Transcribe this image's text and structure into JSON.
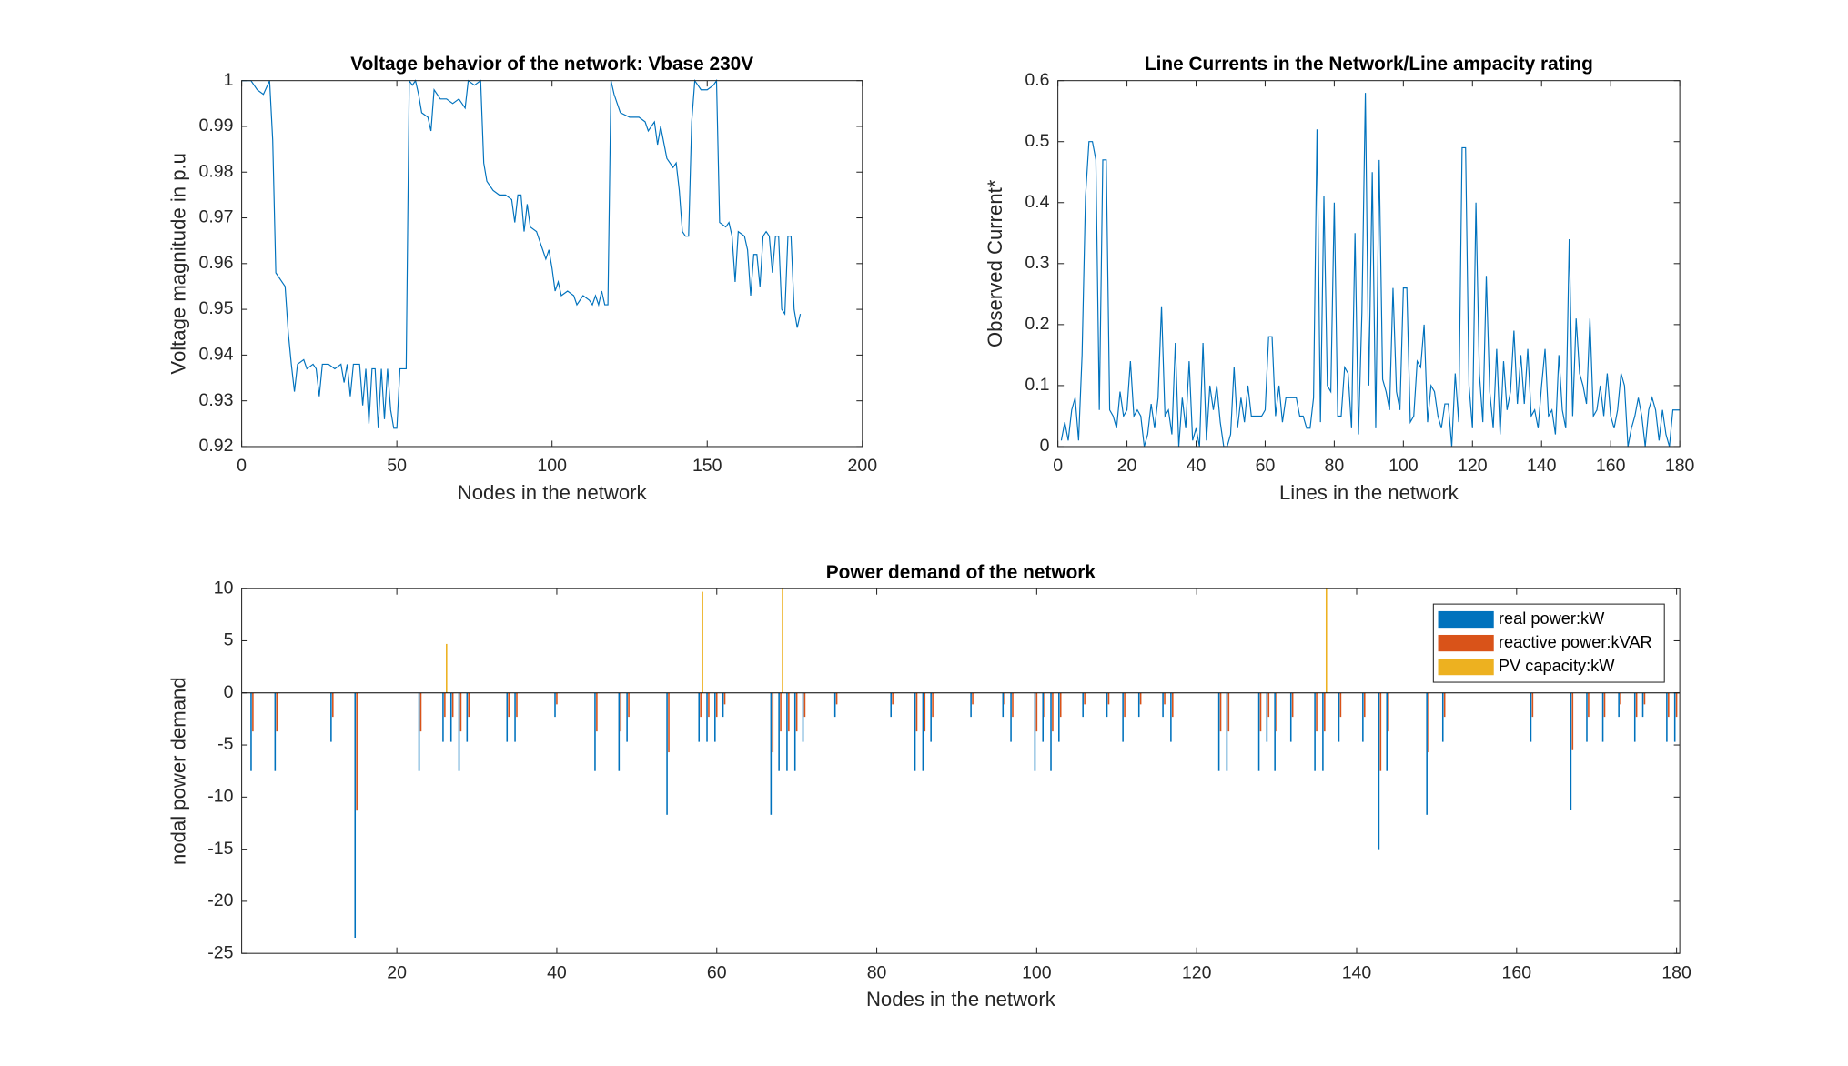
{
  "chart_data": [
    {
      "type": "line",
      "title": "Voltage behavior of the network: Vbase 230V",
      "xlabel": "Nodes in the network",
      "ylabel": "Voltage magnitude in p.u",
      "color": "#0072bd",
      "x": [
        0,
        3,
        5,
        7,
        9,
        10,
        11,
        13,
        14,
        15,
        16,
        17,
        18,
        20,
        21,
        23,
        24,
        25,
        26,
        28,
        30,
        32,
        33,
        34,
        35,
        36,
        38,
        39,
        40,
        41,
        42,
        43,
        44,
        45,
        46,
        47,
        48,
        49,
        50,
        51,
        53,
        54,
        55,
        56,
        57,
        58,
        60,
        61,
        62,
        64,
        66,
        68,
        70,
        72,
        73,
        75,
        77,
        78,
        79,
        81,
        83,
        85,
        87,
        88,
        89,
        90,
        91,
        92,
        93,
        95,
        96,
        97,
        98,
        99,
        100,
        101,
        102,
        103,
        105,
        107,
        108,
        110,
        112,
        113,
        114,
        115,
        116,
        117,
        118,
        119,
        120,
        122,
        125,
        128,
        130,
        131,
        133,
        134,
        135,
        137,
        139,
        140,
        141,
        142,
        143,
        144,
        145,
        146,
        147,
        148,
        150,
        152,
        153,
        154,
        156,
        157,
        158,
        159,
        160,
        162,
        163,
        164,
        165,
        166,
        167,
        168,
        169,
        170,
        171,
        172,
        173,
        174,
        175,
        176,
        177,
        178,
        179,
        180
      ],
      "values": [
        1,
        1,
        0.998,
        0.997,
        1,
        0.987,
        0.958,
        0.956,
        0.955,
        0.945,
        0.938,
        0.932,
        0.938,
        0.939,
        0.937,
        0.938,
        0.937,
        0.931,
        0.938,
        0.938,
        0.937,
        0.938,
        0.934,
        0.938,
        0.931,
        0.938,
        0.938,
        0.929,
        0.937,
        0.925,
        0.937,
        0.937,
        0.924,
        0.937,
        0.926,
        0.937,
        0.928,
        0.924,
        0.924,
        0.937,
        0.937,
        1,
        0.999,
        1,
        0.997,
        0.993,
        0.992,
        0.989,
        0.998,
        0.996,
        0.996,
        0.995,
        0.996,
        0.994,
        1,
        0.999,
        1,
        0.982,
        0.978,
        0.976,
        0.975,
        0.975,
        0.974,
        0.969,
        0.975,
        0.975,
        0.967,
        0.973,
        0.968,
        0.967,
        0.965,
        0.963,
        0.961,
        0.963,
        0.959,
        0.954,
        0.956,
        0.953,
        0.954,
        0.953,
        0.951,
        0.953,
        0.952,
        0.951,
        0.953,
        0.951,
        0.954,
        0.951,
        0.951,
        1,
        0.997,
        0.993,
        0.992,
        0.992,
        0.991,
        0.989,
        0.991,
        0.986,
        0.99,
        0.983,
        0.981,
        0.982,
        0.976,
        0.967,
        0.966,
        0.966,
        0.991,
        1,
        0.999,
        0.998,
        0.998,
        0.999,
        1,
        0.969,
        0.968,
        0.969,
        0.966,
        0.956,
        0.967,
        0.966,
        0.963,
        0.953,
        0.962,
        0.962,
        0.955,
        0.966,
        0.967,
        0.966,
        0.958,
        0.966,
        0.966,
        0.95,
        0.949,
        0.966,
        0.966,
        0.95,
        0.946,
        0.949
      ],
      "xlim": [
        0,
        200
      ],
      "xticks": [
        0,
        50,
        100,
        150,
        200
      ],
      "ylim": [
        0.92,
        1
      ],
      "yticks": [
        0.92,
        0.93,
        0.94,
        0.95,
        0.96,
        0.97,
        0.98,
        0.99,
        1
      ]
    },
    {
      "type": "line",
      "title": "Line Currents in the Network/Line ampacity rating",
      "xlabel": "Lines in the network",
      "ylabel": "Observed Current*",
      "color": "#0072bd",
      "x": [
        1,
        2,
        3,
        4,
        5,
        6,
        7,
        8,
        9,
        10,
        11,
        12,
        13,
        14,
        15,
        16,
        17,
        18,
        19,
        20,
        21,
        22,
        23,
        24,
        25,
        26,
        27,
        28,
        29,
        30,
        31,
        32,
        33,
        34,
        35,
        36,
        37,
        38,
        39,
        40,
        41,
        42,
        43,
        44,
        45,
        46,
        47,
        48,
        49,
        50,
        51,
        52,
        53,
        54,
        55,
        56,
        57,
        58,
        59,
        60,
        61,
        62,
        63,
        64,
        65,
        66,
        67,
        68,
        69,
        70,
        71,
        72,
        73,
        74,
        75,
        76,
        77,
        78,
        79,
        80,
        81,
        82,
        83,
        84,
        85,
        86,
        87,
        88,
        89,
        90,
        91,
        92,
        93,
        94,
        95,
        96,
        97,
        98,
        99,
        100,
        101,
        102,
        103,
        104,
        105,
        106,
        107,
        108,
        109,
        110,
        111,
        112,
        113,
        114,
        115,
        116,
        117,
        118,
        119,
        120,
        121,
        122,
        123,
        124,
        125,
        126,
        127,
        128,
        129,
        130,
        131,
        132,
        133,
        134,
        135,
        136,
        137,
        138,
        139,
        140,
        141,
        142,
        143,
        144,
        145,
        146,
        147,
        148,
        149,
        150,
        151,
        152,
        153,
        154,
        155,
        156,
        157,
        158,
        159,
        160,
        161,
        162,
        163,
        164,
        165,
        166,
        167,
        168,
        169,
        170,
        171,
        172,
        173,
        174,
        175,
        176,
        177,
        178,
        179,
        180
      ],
      "values": [
        0.01,
        0.04,
        0.01,
        0.06,
        0.08,
        0.01,
        0.15,
        0.41,
        0.5,
        0.5,
        0.47,
        0.06,
        0.47,
        0.47,
        0.06,
        0.05,
        0.03,
        0.09,
        0.05,
        0.06,
        0.14,
        0.05,
        0.06,
        0.05,
        0,
        0.02,
        0.07,
        0.03,
        0.08,
        0.23,
        0.05,
        0.06,
        0.02,
        0.17,
        0,
        0.08,
        0.03,
        0.14,
        0.01,
        0.03,
        0,
        0.17,
        0.01,
        0.1,
        0.06,
        0.1,
        0.04,
        0,
        0,
        0.02,
        0.13,
        0.03,
        0.08,
        0.04,
        0.1,
        0.05,
        0.05,
        0.05,
        0.05,
        0.06,
        0.18,
        0.18,
        0.05,
        0.1,
        0.04,
        0.08,
        0.08,
        0.08,
        0.08,
        0.05,
        0.05,
        0.03,
        0.03,
        0.08,
        0.52,
        0.04,
        0.41,
        0.1,
        0.09,
        0.4,
        0.05,
        0.05,
        0.13,
        0.12,
        0.03,
        0.35,
        0.02,
        0.22,
        0.58,
        0.1,
        0.45,
        0.03,
        0.47,
        0.11,
        0.09,
        0.06,
        0.26,
        0.09,
        0.06,
        0.26,
        0.26,
        0.04,
        0.05,
        0.14,
        0.13,
        0.2,
        0.04,
        0.1,
        0.09,
        0.05,
        0.03,
        0.07,
        0.07,
        0,
        0.12,
        0.04,
        0.49,
        0.49,
        0.1,
        0.03,
        0.4,
        0.12,
        0.04,
        0.28,
        0.09,
        0.03,
        0.16,
        0.02,
        0.14,
        0.06,
        0.09,
        0.19,
        0.07,
        0.15,
        0.07,
        0.16,
        0.05,
        0.06,
        0.03,
        0.1,
        0.16,
        0.05,
        0.06,
        0.02,
        0.15,
        0.06,
        0.03,
        0.34,
        0.05,
        0.21,
        0.12,
        0.1,
        0.07,
        0.21,
        0.05,
        0.06,
        0.1,
        0.05,
        0.12,
        0.05,
        0.03,
        0.06,
        0.12,
        0.1,
        0,
        0.03,
        0.05,
        0.08,
        0.05,
        0,
        0.06,
        0.08,
        0.06,
        0.01,
        0.06,
        0.02,
        0,
        0.06,
        0.06,
        0.06
      ],
      "xlim": [
        0,
        180
      ],
      "xticks": [
        0,
        20,
        40,
        60,
        80,
        100,
        120,
        140,
        160,
        180
      ],
      "ylim": [
        0,
        0.6
      ],
      "yticks": [
        0,
        0.1,
        0.2,
        0.3,
        0.4,
        0.5,
        0.6
      ]
    },
    {
      "type": "bar",
      "title": "Power demand of the network",
      "xlabel": "Nodes in the network",
      "ylabel": "nodal power demand",
      "legend": "northeast",
      "x": [
        2,
        5,
        12,
        15,
        23,
        26,
        27,
        28,
        29,
        34,
        35,
        40,
        45,
        48,
        49,
        54,
        58,
        59,
        60,
        61,
        67,
        68,
        69,
        70,
        71,
        75,
        82,
        85,
        86,
        87,
        92,
        96,
        97,
        100,
        101,
        102,
        103,
        106,
        109,
        111,
        113,
        116,
        117,
        123,
        124,
        128,
        129,
        130,
        132,
        135,
        136,
        138,
        141,
        143,
        144,
        149,
        151,
        162,
        167,
        169,
        171,
        173,
        175,
        176,
        179,
        180
      ],
      "series": [
        {
          "name": "real power:kW",
          "color": "#0072bd",
          "values": [
            -7.5,
            -7.5,
            -4.7,
            -23.5,
            -7.5,
            -4.7,
            -4.7,
            -7.5,
            -4.7,
            -4.7,
            -4.7,
            -2.3,
            -7.5,
            -7.5,
            -4.7,
            -11.7,
            -4.7,
            -4.7,
            -4.7,
            -2.3,
            -11.7,
            -7.5,
            -7.5,
            -7.5,
            -4.7,
            -2.3,
            -2.3,
            -7.5,
            -7.5,
            -4.7,
            -2.3,
            -2.3,
            -4.7,
            -7.5,
            -4.7,
            -7.5,
            -4.7,
            -2.3,
            -2.3,
            -4.7,
            -2.3,
            -2.3,
            -4.7,
            -7.5,
            -7.5,
            -7.5,
            -4.7,
            -7.5,
            -4.7,
            -7.5,
            -7.5,
            -4.7,
            -4.7,
            -15,
            -7.5,
            -11.7,
            -4.7,
            -4.7,
            -11.2,
            -4.7,
            -4.7,
            -2.3,
            -4.7,
            -2.3,
            -4.7,
            -4.7
          ]
        },
        {
          "name": "reactive power:kVAR",
          "color": "#d95319",
          "values": [
            -3.7,
            -3.7,
            -2.3,
            -11.3,
            -3.7,
            -2.3,
            -2.3,
            -3.7,
            -2.3,
            -2.3,
            -2.3,
            -1.1,
            -3.7,
            -3.7,
            -2.3,
            -5.7,
            -2.3,
            -2.3,
            -2.3,
            -1.1,
            -5.7,
            -3.7,
            -3.7,
            -3.7,
            -2.3,
            -1.1,
            -1.1,
            -3.7,
            -3.7,
            -2.3,
            -1.1,
            -1.1,
            -2.3,
            -3.7,
            -2.3,
            -3.7,
            -2.3,
            -1.1,
            -1.1,
            -2.3,
            -1.1,
            -1.1,
            -2.3,
            -3.7,
            -3.7,
            -3.7,
            -2.3,
            -3.7,
            -2.3,
            -3.7,
            -3.7,
            -2.3,
            -2.3,
            -7.5,
            -3.7,
            -5.7,
            -2.3,
            -2.3,
            -5.5,
            -2.3,
            -2.3,
            -1.1,
            -2.3,
            -1.1,
            -2.3,
            -2.3
          ]
        },
        {
          "name": "PV capacity:kW",
          "color": "#edb120",
          "values": [
            0,
            0,
            0,
            0,
            0,
            4.7,
            0,
            0,
            0,
            0,
            0,
            0,
            0,
            0,
            0,
            0,
            9.7,
            0,
            0,
            0,
            0,
            10,
            0,
            0,
            0,
            0,
            0,
            0,
            0,
            0,
            0,
            0,
            0,
            0,
            0,
            0,
            0,
            0,
            0,
            0,
            0,
            0,
            0,
            0,
            0,
            0,
            0,
            0,
            0,
            0,
            10,
            0,
            0,
            0,
            0,
            0,
            0,
            0,
            0,
            0,
            0,
            0,
            0,
            0,
            0,
            0
          ]
        }
      ],
      "xlim": [
        0.6,
        180.4
      ],
      "xticks": [
        20,
        40,
        60,
        80,
        100,
        120,
        140,
        160,
        180
      ],
      "ylim": [
        -25,
        10
      ],
      "yticks": [
        -25,
        -20,
        -15,
        -10,
        -5,
        0,
        5,
        10
      ]
    }
  ]
}
